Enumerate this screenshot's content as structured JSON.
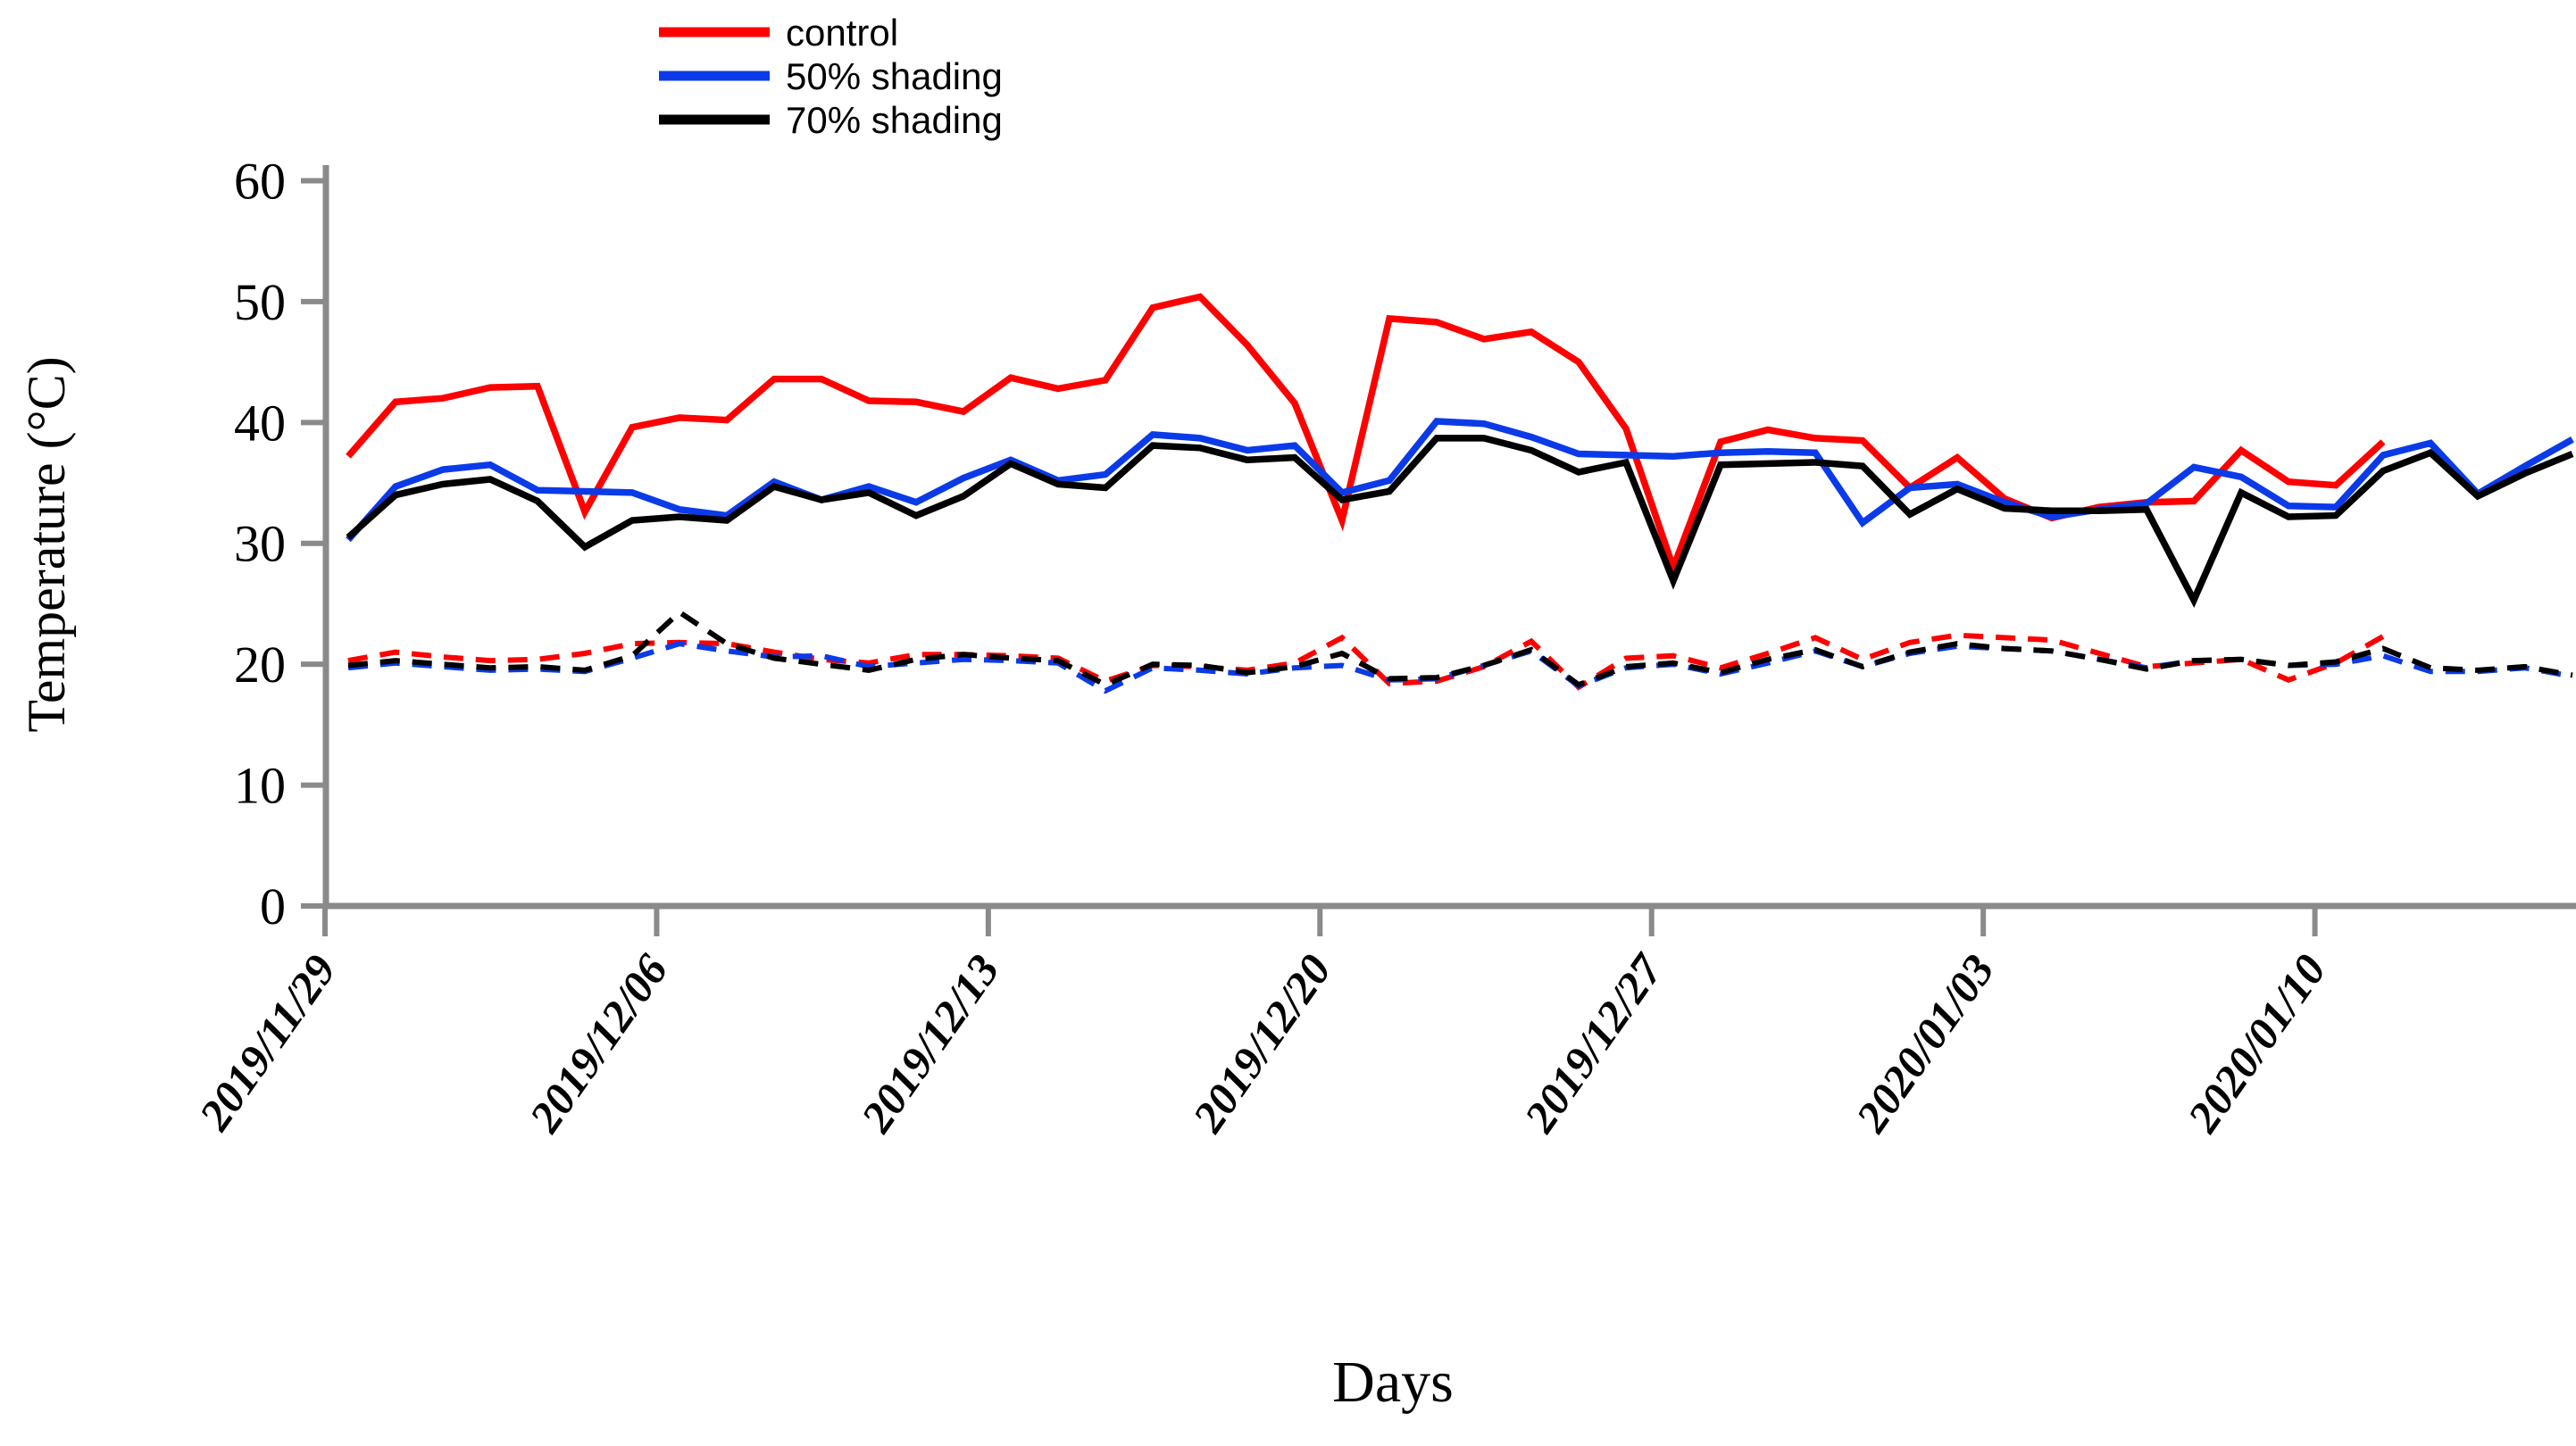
{
  "chart_data": {
    "type": "line",
    "title": "",
    "xlabel": "Days",
    "ylabel": "Temperature (°C)",
    "ylim": [
      0,
      60
    ],
    "yticks": [
      0,
      10,
      20,
      30,
      40,
      50,
      60
    ],
    "grid": false,
    "legend_position": "top-center",
    "x_unit": "day-index (daily points starting 2019/11/29)",
    "x_tick_positions_days": [
      0,
      7,
      14,
      21,
      28,
      35,
      42
    ],
    "x_tick_labels": [
      "2019/11/29",
      "2019/12/06",
      "2019/12/13",
      "2019/12/20",
      "2019/12/27",
      "2020/01/03",
      "2020/01/10"
    ],
    "axis_color": "#8a8a8a",
    "legend": [
      {
        "label": "control",
        "color": "#fe0000"
      },
      {
        "label": "50% shading",
        "color": "#0b3be8"
      },
      {
        "label": "70% shading",
        "color": "#000000"
      }
    ],
    "series": [
      {
        "name": "control-max",
        "legend_label": "control",
        "color": "#fe0000",
        "style": "solid",
        "values": [
          37.2,
          41.7,
          42.0,
          42.9,
          43.0,
          32.6,
          39.6,
          40.4,
          40.2,
          43.6,
          43.6,
          41.8,
          41.7,
          40.9,
          43.7,
          42.8,
          43.5,
          49.5,
          50.4,
          46.4,
          41.6,
          31.9,
          48.6,
          48.3,
          46.9,
          47.5,
          45.0,
          39.5,
          28.0,
          38.4,
          39.4,
          38.7,
          38.5,
          34.6,
          37.1,
          33.7,
          32.1,
          33.0,
          33.4,
          33.5,
          37.7,
          35.1,
          34.8,
          38.4
        ]
      },
      {
        "name": "shading50-max",
        "legend_label": "50% shading",
        "color": "#0b3be8",
        "style": "solid",
        "values": [
          30.3,
          34.7,
          36.1,
          36.5,
          34.4,
          34.3,
          34.2,
          32.8,
          32.3,
          35.1,
          33.6,
          34.7,
          33.4,
          35.4,
          36.9,
          35.2,
          35.7,
          39.0,
          38.7,
          37.7,
          38.1,
          34.2,
          35.2,
          40.1,
          39.9,
          38.8,
          37.4,
          37.3,
          37.2,
          37.5,
          37.6,
          37.5,
          31.7,
          34.6,
          34.9,
          33.4,
          32.2,
          32.8,
          33.3,
          36.3,
          35.5,
          33.1,
          33.0,
          37.3,
          38.3,
          34.1,
          36.4,
          38.6
        ]
      },
      {
        "name": "shading70-max",
        "legend_label": "70% shading",
        "color": "#000000",
        "style": "solid",
        "values": [
          30.5,
          34.0,
          34.9,
          35.3,
          33.5,
          29.7,
          31.9,
          32.2,
          31.9,
          34.7,
          33.6,
          34.2,
          32.3,
          33.9,
          36.6,
          34.9,
          34.6,
          38.1,
          37.9,
          36.9,
          37.1,
          33.6,
          34.3,
          38.7,
          38.7,
          37.7,
          35.9,
          36.7,
          26.9,
          36.5,
          36.6,
          36.7,
          36.4,
          32.4,
          34.5,
          32.9,
          32.7,
          32.7,
          32.8,
          25.3,
          34.2,
          32.2,
          32.3,
          36.0,
          37.5,
          33.9,
          35.8,
          37.4
        ]
      },
      {
        "name": "control-min",
        "legend_label": "",
        "color": "#fe0000",
        "style": "dashed",
        "values": [
          20.3,
          21.0,
          20.6,
          20.3,
          20.4,
          20.9,
          21.7,
          21.8,
          21.7,
          21.0,
          20.4,
          20.1,
          20.8,
          20.8,
          20.7,
          20.5,
          18.6,
          19.9,
          19.8,
          19.5,
          20.1,
          22.2,
          18.4,
          18.6,
          19.8,
          21.9,
          18.1,
          20.5,
          20.7,
          19.7,
          20.9,
          22.2,
          20.4,
          21.8,
          22.4,
          22.2,
          22.0,
          20.9,
          19.8,
          20.1,
          20.4,
          18.7,
          20.1,
          22.3
        ]
      },
      {
        "name": "shading50-min",
        "legend_label": "",
        "color": "#0b3be8",
        "style": "dashed",
        "values": [
          19.7,
          20.1,
          19.8,
          19.5,
          19.6,
          19.4,
          20.5,
          21.7,
          21.1,
          20.6,
          20.7,
          19.8,
          20.1,
          20.4,
          20.3,
          20.1,
          17.8,
          19.7,
          19.5,
          19.2,
          19.7,
          19.9,
          18.7,
          18.8,
          19.9,
          21.1,
          18.2,
          19.7,
          20.0,
          19.2,
          20.1,
          21.1,
          19.8,
          20.9,
          21.5,
          21.3,
          21.1,
          20.4,
          19.7,
          20.3,
          20.4,
          19.9,
          20.0,
          20.7,
          19.4,
          19.4,
          19.7,
          19.0
        ]
      },
      {
        "name": "shading70-min",
        "legend_label": "",
        "color": "#000000",
        "style": "dashed",
        "values": [
          19.9,
          20.3,
          20.0,
          19.7,
          19.8,
          19.5,
          20.7,
          24.3,
          21.7,
          20.5,
          20.0,
          19.5,
          20.4,
          20.8,
          20.5,
          20.3,
          18.3,
          20.0,
          19.9,
          19.3,
          19.8,
          20.9,
          18.8,
          18.9,
          19.9,
          21.2,
          18.3,
          19.8,
          20.1,
          19.3,
          20.4,
          21.2,
          19.8,
          21.0,
          21.7,
          21.3,
          21.1,
          20.4,
          19.6,
          20.3,
          20.4,
          19.9,
          20.2,
          21.3,
          19.7,
          19.5,
          19.8,
          19.1
        ]
      }
    ]
  }
}
